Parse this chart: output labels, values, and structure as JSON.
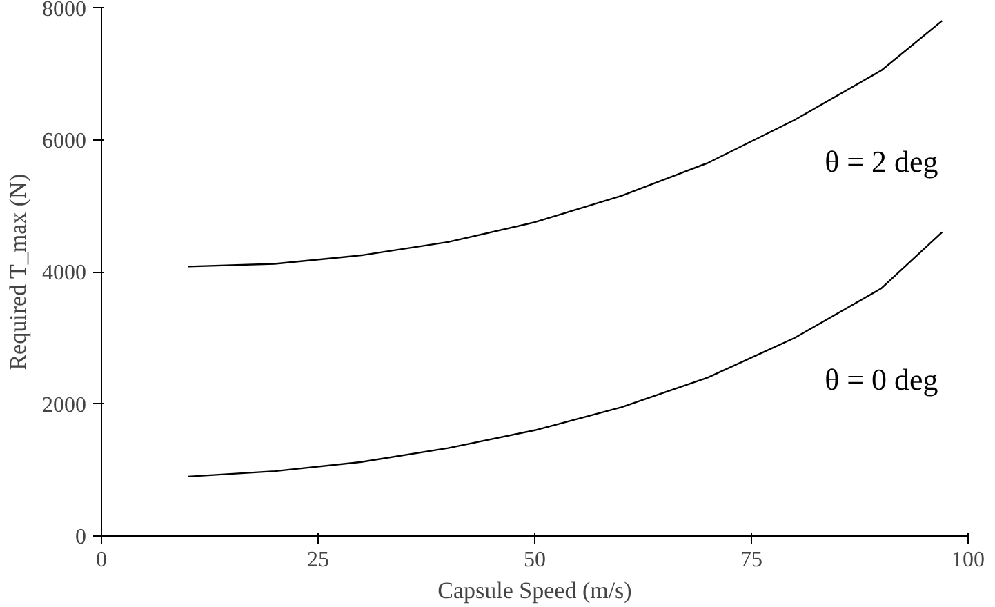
{
  "chart_data": {
    "type": "line",
    "xlabel": "Capsule Speed (m/s)",
    "ylabel": "Required T_max (N)",
    "x": [
      10,
      20,
      30,
      40,
      50,
      60,
      70,
      80,
      90,
      97
    ],
    "series": [
      {
        "name": "θ = 2 deg",
        "color": "#000000",
        "values": [
          4080,
          4120,
          4250,
          4450,
          4750,
          5150,
          5650,
          6300,
          7050,
          7800
        ]
      },
      {
        "name": "θ = 0 deg",
        "color": "#000000",
        "values": [
          900,
          980,
          1120,
          1330,
          1600,
          1950,
          2400,
          3000,
          3750,
          4600
        ]
      }
    ],
    "xlim": [
      0,
      100
    ],
    "ylim": [
      0,
      8000
    ],
    "xticks": [
      0,
      25,
      50,
      75,
      100
    ],
    "yticks": [
      0,
      2000,
      4000,
      6000,
      8000
    ],
    "grid": false,
    "marker": "none",
    "line_style": "solid"
  }
}
